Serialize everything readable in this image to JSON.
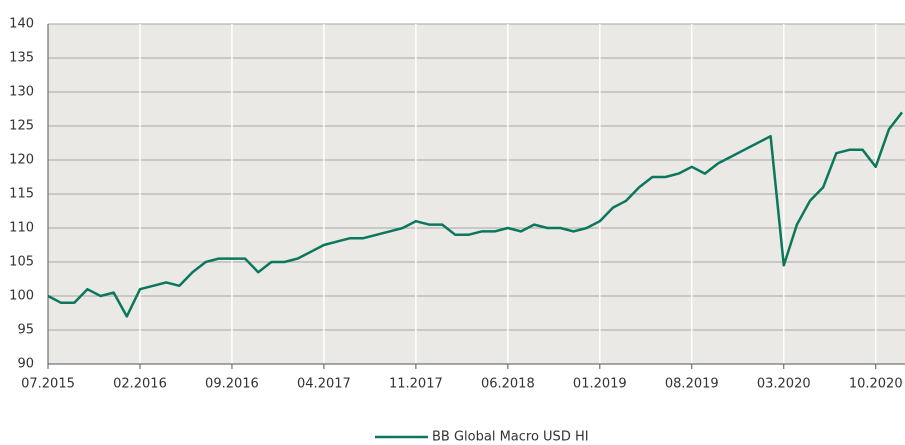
{
  "chart_data": {
    "type": "line",
    "x": [
      "2015-07",
      "2015-08",
      "2015-09",
      "2015-10",
      "2015-11",
      "2015-12",
      "2016-01",
      "2016-02",
      "2016-03",
      "2016-04",
      "2016-05",
      "2016-06",
      "2016-07",
      "2016-08",
      "2016-09",
      "2016-10",
      "2016-11",
      "2016-12",
      "2017-01",
      "2017-02",
      "2017-03",
      "2017-04",
      "2017-05",
      "2017-06",
      "2017-07",
      "2017-08",
      "2017-09",
      "2017-10",
      "2017-11",
      "2017-12",
      "2018-01",
      "2018-02",
      "2018-03",
      "2018-04",
      "2018-05",
      "2018-06",
      "2018-07",
      "2018-08",
      "2018-09",
      "2018-10",
      "2018-11",
      "2018-12",
      "2019-01",
      "2019-02",
      "2019-03",
      "2019-04",
      "2019-05",
      "2019-06",
      "2019-07",
      "2019-08",
      "2019-09",
      "2019-10",
      "2019-11",
      "2019-12",
      "2020-01",
      "2020-02",
      "2020-03",
      "2020-04",
      "2020-05",
      "2020-06",
      "2020-07",
      "2020-08",
      "2020-09",
      "2020-10",
      "2020-11",
      "2020-12"
    ],
    "series": [
      {
        "name": "BB Global Macro USD HI",
        "color": "#0b775c",
        "values": [
          100,
          99,
          99,
          101,
          100,
          100.5,
          97,
          101,
          101.5,
          102,
          101.5,
          103.5,
          105,
          105.5,
          105.5,
          105.5,
          103.5,
          105,
          105,
          105.5,
          106.5,
          107.5,
          108,
          108.5,
          108.5,
          109,
          109.5,
          110,
          111,
          110.5,
          110.5,
          109,
          109,
          109.5,
          109.5,
          110,
          109.5,
          110.5,
          110,
          110,
          109.5,
          110,
          111,
          113,
          114,
          116,
          117.5,
          117.5,
          118,
          119,
          118,
          119.5,
          120.5,
          121.5,
          122.5,
          123.5,
          104.5,
          110.5,
          114,
          116,
          121,
          121.5,
          121.5,
          119,
          124.5,
          127
        ]
      }
    ],
    "xlim": [
      "2015-07",
      "2020-12"
    ],
    "xticks": [
      {
        "value": "2015-07",
        "label": "07.2015"
      },
      {
        "value": "2016-02",
        "label": "02.2016"
      },
      {
        "value": "2016-09",
        "label": "09.2016"
      },
      {
        "value": "2017-04",
        "label": "04.2017"
      },
      {
        "value": "2017-11",
        "label": "11.2017"
      },
      {
        "value": "2018-06",
        "label": "06.2018"
      },
      {
        "value": "2019-01",
        "label": "01.2019"
      },
      {
        "value": "2019-08",
        "label": "08.2019"
      },
      {
        "value": "2020-03",
        "label": "03.2020"
      },
      {
        "value": "2020-10",
        "label": "10.2020"
      }
    ],
    "ylim": [
      90,
      140
    ],
    "yticks": [
      90,
      95,
      100,
      105,
      110,
      115,
      120,
      125,
      130,
      135,
      140
    ],
    "grid": true,
    "legend": "bottom"
  }
}
